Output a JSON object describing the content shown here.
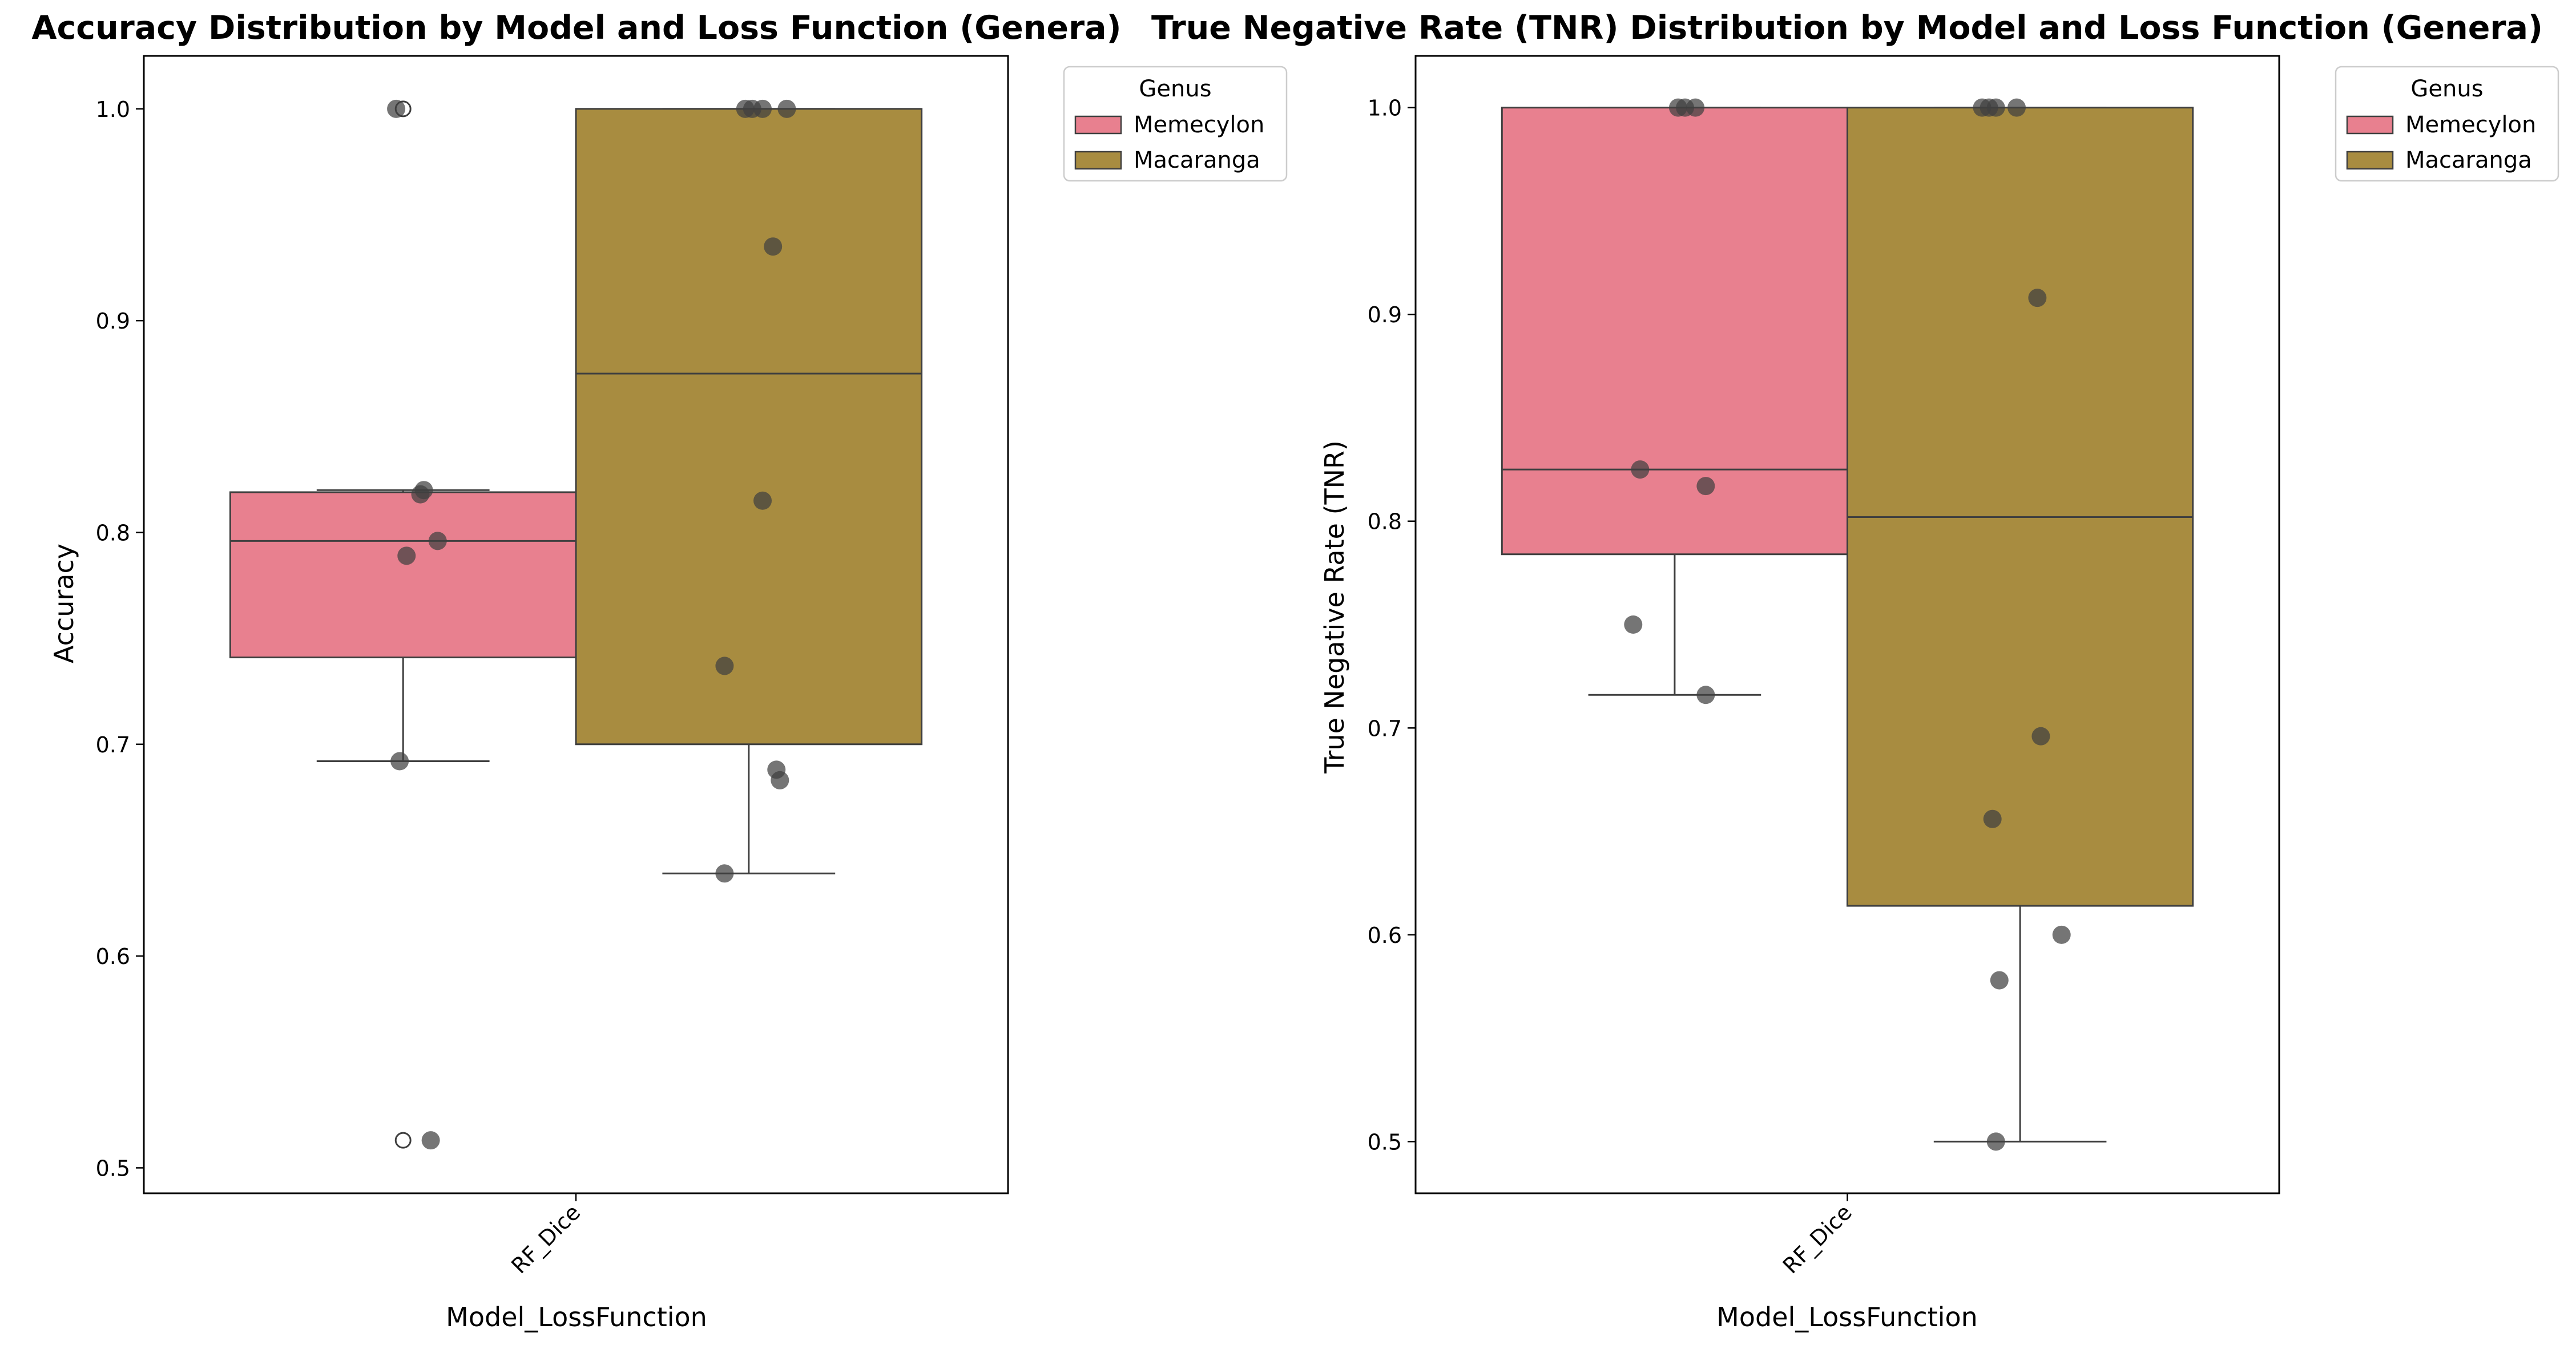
{
  "chart_data": [
    {
      "type": "box",
      "title": "Accuracy Distribution by Model and Loss Function (Genera)",
      "xlabel": "Model_LossFunction",
      "ylabel": "Accuracy",
      "categories": [
        "RF_Dice"
      ],
      "ylim": [
        0.488,
        1.025
      ],
      "yticks": [
        0.5,
        0.6,
        0.7,
        0.8,
        0.9,
        1.0
      ],
      "ytick_labels": [
        "0.5",
        "0.6",
        "0.7",
        "0.8",
        "0.9",
        "1.0"
      ],
      "legend": {
        "title": "Genus",
        "position": "outside-top-right"
      },
      "series": [
        {
          "name": "Memecylon",
          "color": "#e8808f",
          "box": {
            "q1": 0.741,
            "median": 0.796,
            "q3": 0.819,
            "whisker_low": 0.692,
            "whisker_high": 0.82
          },
          "outliers": [
            0.513,
            1.0
          ],
          "points": [
            {
              "x": -0.02,
              "y": 1.0
            },
            {
              "x": 0.06,
              "y": 0.82
            },
            {
              "x": 0.05,
              "y": 0.818
            },
            {
              "x": 0.1,
              "y": 0.796
            },
            {
              "x": 0.01,
              "y": 0.789
            },
            {
              "x": -0.01,
              "y": 0.692
            },
            {
              "x": 0.08,
              "y": 0.513
            }
          ]
        },
        {
          "name": "Macaranga",
          "color": "#a88c40",
          "box": {
            "q1": 0.7,
            "median": 0.875,
            "q3": 1.0,
            "whisker_low": 0.639,
            "whisker_high": 1.0
          },
          "outliers": [],
          "points": [
            {
              "x": -0.01,
              "y": 1.0
            },
            {
              "x": 0.01,
              "y": 1.0
            },
            {
              "x": 0.04,
              "y": 1.0
            },
            {
              "x": 0.11,
              "y": 1.0
            },
            {
              "x": 0.07,
              "y": 0.935
            },
            {
              "x": 0.04,
              "y": 0.815
            },
            {
              "x": -0.07,
              "y": 0.737
            },
            {
              "x": 0.08,
              "y": 0.688
            },
            {
              "x": 0.09,
              "y": 0.683
            },
            {
              "x": -0.07,
              "y": 0.639
            }
          ]
        }
      ]
    },
    {
      "type": "box",
      "title": "True Negative Rate (TNR) Distribution by Model and Loss Function (Genera)",
      "xlabel": "Model_LossFunction",
      "ylabel": "True Negative Rate (TNR)",
      "categories": [
        "RF_Dice"
      ],
      "ylim": [
        0.475,
        1.025
      ],
      "yticks": [
        0.5,
        0.6,
        0.7,
        0.8,
        0.9,
        1.0
      ],
      "ytick_labels": [
        "0.5",
        "0.6",
        "0.7",
        "0.8",
        "0.9",
        "1.0"
      ],
      "legend": {
        "title": "Genus",
        "position": "outside-top-right"
      },
      "series": [
        {
          "name": "Memecylon",
          "color": "#e8808f",
          "box": {
            "q1": 0.784,
            "median": 0.825,
            "q3": 1.0,
            "whisker_low": 0.716,
            "whisker_high": 1.0
          },
          "outliers": [],
          "points": [
            {
              "x": 0.01,
              "y": 1.0
            },
            {
              "x": 0.03,
              "y": 1.0
            },
            {
              "x": 0.06,
              "y": 1.0
            },
            {
              "x": -0.1,
              "y": 0.825
            },
            {
              "x": 0.09,
              "y": 0.817
            },
            {
              "x": -0.12,
              "y": 0.75
            },
            {
              "x": 0.09,
              "y": 0.716
            }
          ]
        },
        {
          "name": "Macaranga",
          "color": "#a88c40",
          "box": {
            "q1": 0.614,
            "median": 0.802,
            "q3": 1.0,
            "whisker_low": 0.5,
            "whisker_high": 1.0
          },
          "outliers": [],
          "points": [
            {
              "x": -0.11,
              "y": 1.0
            },
            {
              "x": -0.09,
              "y": 1.0
            },
            {
              "x": -0.07,
              "y": 1.0
            },
            {
              "x": -0.01,
              "y": 1.0
            },
            {
              "x": 0.05,
              "y": 0.908
            },
            {
              "x": 0.06,
              "y": 0.696
            },
            {
              "x": -0.08,
              "y": 0.656
            },
            {
              "x": 0.12,
              "y": 0.6
            },
            {
              "x": -0.06,
              "y": 0.578
            },
            {
              "x": -0.07,
              "y": 0.5
            }
          ]
        }
      ]
    }
  ]
}
